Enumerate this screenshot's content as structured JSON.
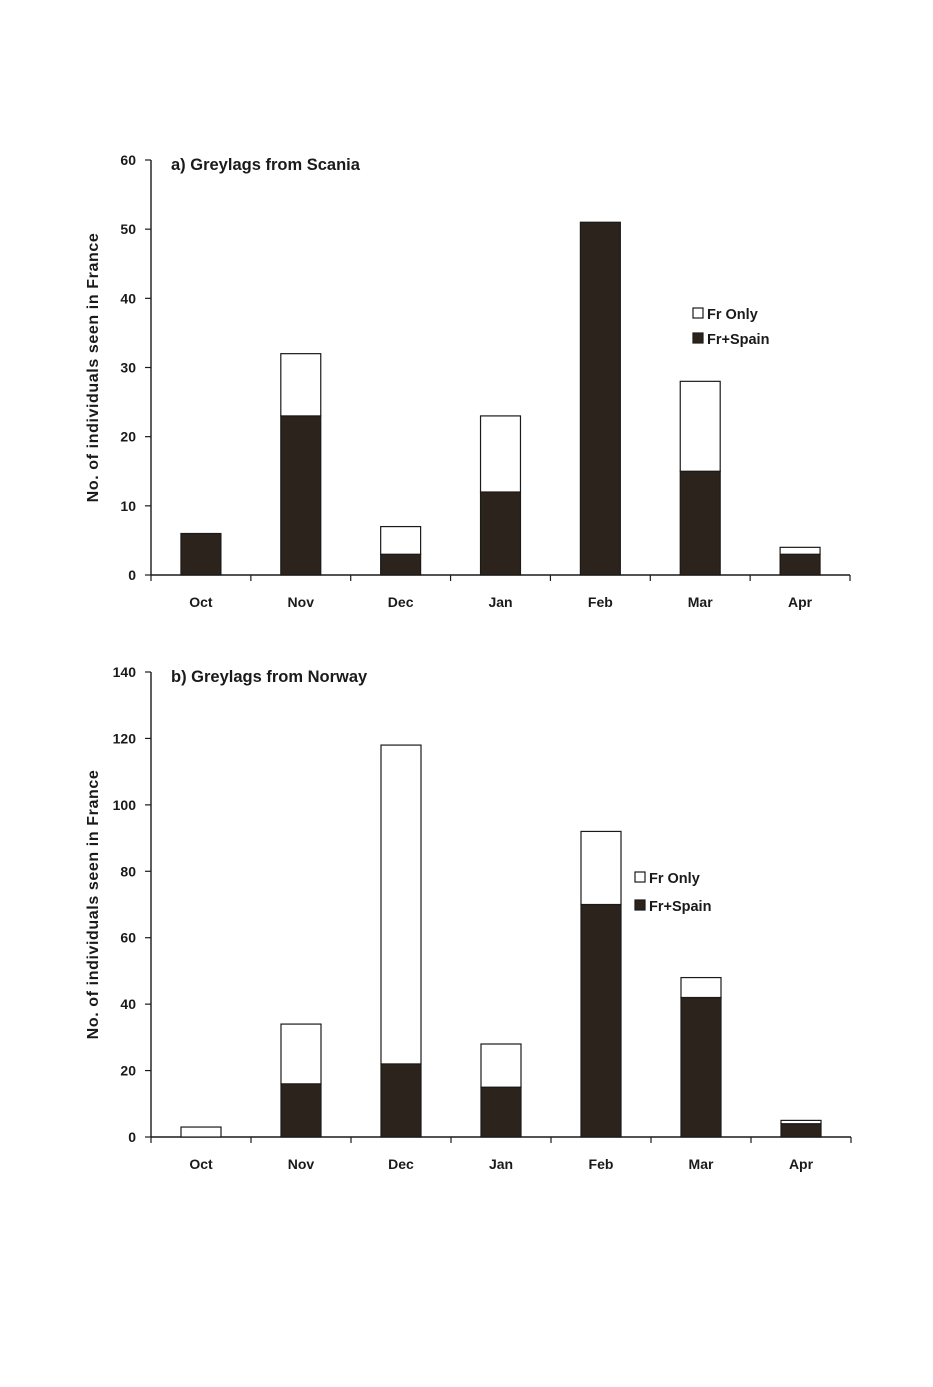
{
  "chart_data": [
    {
      "type": "bar",
      "stacked": true,
      "title": "a) Greylags from Scania",
      "xlabel": "",
      "ylabel": "No.  of  individuals  seen  in  France",
      "categories": [
        "Oct",
        "Nov",
        "Dec",
        "Jan",
        "Feb",
        "Mar",
        "Apr"
      ],
      "ylim": [
        0,
        60
      ],
      "yticks": [
        0,
        10,
        20,
        30,
        40,
        50,
        60
      ],
      "grid": false,
      "legend_position": "right",
      "series": [
        {
          "name": "Fr+Spain",
          "color": "#2b231c",
          "values": [
            6,
            23,
            3,
            12,
            51,
            15,
            3
          ]
        },
        {
          "name": "Fr Only",
          "color": "#ffffff",
          "values": [
            0,
            9,
            4,
            11,
            0,
            13,
            1
          ]
        }
      ],
      "legend_order": [
        "Fr Only",
        "Fr+Spain"
      ]
    },
    {
      "type": "bar",
      "stacked": true,
      "title": "b) Greylags from Norway",
      "xlabel": "",
      "ylabel": "No.  of  individuals  seen  in  France",
      "categories": [
        "Oct",
        "Nov",
        "Dec",
        "Jan",
        "Feb",
        "Mar",
        "Apr"
      ],
      "ylim": [
        0,
        140
      ],
      "yticks": [
        0,
        20,
        40,
        60,
        80,
        100,
        120,
        140
      ],
      "grid": false,
      "legend_position": "right",
      "series": [
        {
          "name": "Fr+Spain",
          "color": "#2b231c",
          "values": [
            0,
            16,
            22,
            15,
            70,
            42,
            4
          ]
        },
        {
          "name": "Fr Only",
          "color": "#ffffff",
          "values": [
            3,
            18,
            96,
            13,
            22,
            6,
            1
          ]
        }
      ],
      "legend_order": [
        "Fr Only",
        "Fr+Spain"
      ]
    }
  ]
}
